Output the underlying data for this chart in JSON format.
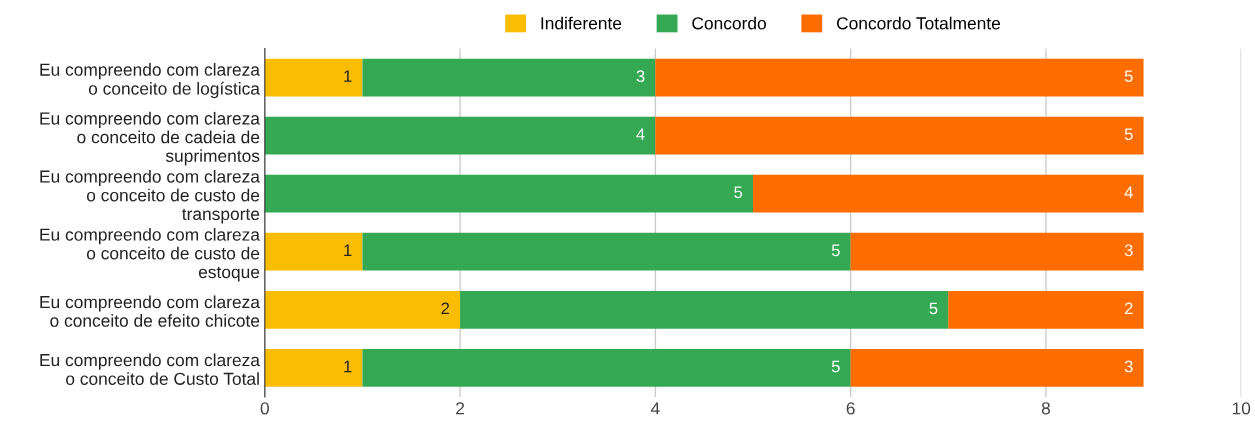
{
  "chart_data": {
    "type": "bar",
    "orientation": "horizontal",
    "stacked": true,
    "categories": [
      "Eu compreendo com clareza\no conceito de logística",
      "Eu compreendo com clareza\no conceito de cadeia de\nsuprimentos",
      "Eu compreendo com clareza\no conceito de custo de\ntransporte",
      "Eu compreendo com clareza\no conceito de custo de\nestoque",
      "Eu compreendo com clareza\no conceito de efeito chicote",
      "Eu compreendo com clareza\no conceito de Custo Total"
    ],
    "series": [
      {
        "name": "Indiferente",
        "color": "#fbbc04",
        "values": [
          1,
          null,
          null,
          1,
          2,
          1
        ]
      },
      {
        "name": "Concordo",
        "color": "#34a853",
        "values": [
          3,
          4,
          5,
          5,
          5,
          5
        ]
      },
      {
        "name": "Concordo Totalmente",
        "color": "#ff6d01",
        "values": [
          5,
          5,
          4,
          3,
          2,
          3
        ]
      }
    ],
    "xlim": [
      0,
      10
    ],
    "xticks": [
      0,
      2,
      4,
      6,
      8,
      10
    ],
    "grid": "x",
    "legend": "top",
    "data_labels": true
  }
}
